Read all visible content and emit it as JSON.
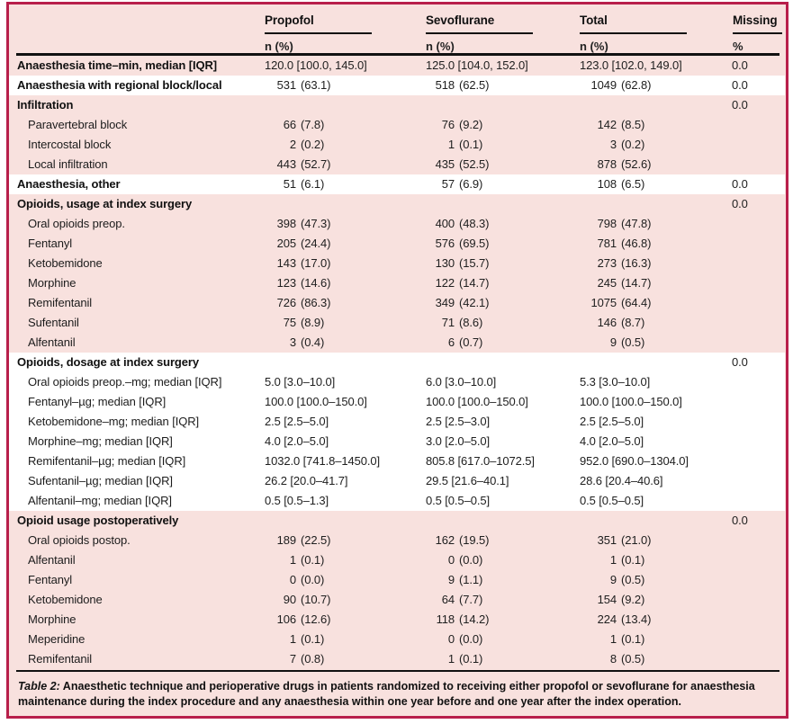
{
  "colors": {
    "accent_border": "#b81f4b",
    "row_pink": "#f8e1de",
    "row_white": "#ffffff",
    "rule_black": "#111111"
  },
  "table": {
    "columns": [
      {
        "key": "propofol",
        "label": "Propofol",
        "sub": "n (%)"
      },
      {
        "key": "sevoflurane",
        "label": "Sevoflurane",
        "sub": "n (%)"
      },
      {
        "key": "total",
        "label": "Total",
        "sub": "n (%)"
      },
      {
        "key": "missing",
        "label": "Missing",
        "sub": "%"
      }
    ],
    "rows": [
      {
        "label": "Anaesthesia time–min, median [IQR]",
        "bold": true,
        "white": false,
        "indent": false,
        "propofol": "120.0 [100.0, 145.0]",
        "sevoflurane": "125.0 [104.0, 152.0]",
        "total": "123.0 [102.0, 149.0]",
        "missing": "0.0"
      },
      {
        "label": "Anaesthesia with regional block/local",
        "bold": true,
        "white": true,
        "indent": false,
        "propofol": [
          "531",
          "(63.1)"
        ],
        "sevoflurane": [
          "518",
          "(62.5)"
        ],
        "total": [
          "1049",
          "(62.8)"
        ],
        "missing": "0.0"
      },
      {
        "label": "Infiltration",
        "bold": true,
        "white": false,
        "indent": false,
        "propofol": null,
        "sevoflurane": null,
        "total": null,
        "missing": "0.0"
      },
      {
        "label": "Paravertebral block",
        "bold": false,
        "white": false,
        "indent": true,
        "propofol": [
          "66",
          "(7.8)"
        ],
        "sevoflurane": [
          "76",
          "(9.2)"
        ],
        "total": [
          "142",
          "(8.5)"
        ],
        "missing": ""
      },
      {
        "label": "Intercostal block",
        "bold": false,
        "white": false,
        "indent": true,
        "propofol": [
          "2",
          "(0.2)"
        ],
        "sevoflurane": [
          "1",
          "(0.1)"
        ],
        "total": [
          "3",
          "(0.2)"
        ],
        "missing": ""
      },
      {
        "label": "Local infiltration",
        "bold": false,
        "white": false,
        "indent": true,
        "propofol": [
          "443",
          "(52.7)"
        ],
        "sevoflurane": [
          "435",
          "(52.5)"
        ],
        "total": [
          "878",
          "(52.6)"
        ],
        "missing": ""
      },
      {
        "label": "Anaesthesia, other",
        "bold": true,
        "white": true,
        "indent": false,
        "propofol": [
          "51",
          "(6.1)"
        ],
        "sevoflurane": [
          "57",
          "(6.9)"
        ],
        "total": [
          "108",
          "(6.5)"
        ],
        "missing": "0.0"
      },
      {
        "label": "Opioids, usage at index surgery",
        "bold": true,
        "white": false,
        "indent": false,
        "propofol": null,
        "sevoflurane": null,
        "total": null,
        "missing": "0.0"
      },
      {
        "label": "Oral opioids preop.",
        "bold": false,
        "white": false,
        "indent": true,
        "propofol": [
          "398",
          "(47.3)"
        ],
        "sevoflurane": [
          "400",
          "(48.3)"
        ],
        "total": [
          "798",
          "(47.8)"
        ],
        "missing": ""
      },
      {
        "label": "Fentanyl",
        "bold": false,
        "white": false,
        "indent": true,
        "propofol": [
          "205",
          "(24.4)"
        ],
        "sevoflurane": [
          "576",
          "(69.5)"
        ],
        "total": [
          "781",
          "(46.8)"
        ],
        "missing": ""
      },
      {
        "label": "Ketobemidone",
        "bold": false,
        "white": false,
        "indent": true,
        "propofol": [
          "143",
          "(17.0)"
        ],
        "sevoflurane": [
          "130",
          "(15.7)"
        ],
        "total": [
          "273",
          "(16.3)"
        ],
        "missing": ""
      },
      {
        "label": "Morphine",
        "bold": false,
        "white": false,
        "indent": true,
        "propofol": [
          "123",
          "(14.6)"
        ],
        "sevoflurane": [
          "122",
          "(14.7)"
        ],
        "total": [
          "245",
          "(14.7)"
        ],
        "missing": ""
      },
      {
        "label": "Remifentanil",
        "bold": false,
        "white": false,
        "indent": true,
        "propofol": [
          "726",
          "(86.3)"
        ],
        "sevoflurane": [
          "349",
          "(42.1)"
        ],
        "total": [
          "1075",
          "(64.4)"
        ],
        "missing": ""
      },
      {
        "label": "Sufentanil",
        "bold": false,
        "white": false,
        "indent": true,
        "propofol": [
          "75",
          "(8.9)"
        ],
        "sevoflurane": [
          "71",
          "(8.6)"
        ],
        "total": [
          "146",
          "(8.7)"
        ],
        "missing": ""
      },
      {
        "label": "Alfentanil",
        "bold": false,
        "white": false,
        "indent": true,
        "propofol": [
          "3",
          "(0.4)"
        ],
        "sevoflurane": [
          "6",
          "(0.7)"
        ],
        "total": [
          "9",
          "(0.5)"
        ],
        "missing": ""
      },
      {
        "label": "Opioids, dosage at index surgery",
        "bold": true,
        "white": true,
        "indent": false,
        "propofol": null,
        "sevoflurane": null,
        "total": null,
        "missing": "0.0"
      },
      {
        "label": "Oral opioids preop.–mg; median [IQR]",
        "bold": false,
        "white": true,
        "indent": true,
        "propofol": "5.0 [3.0–10.0]",
        "sevoflurane": "6.0 [3.0–10.0]",
        "total": "5.3 [3.0–10.0]",
        "missing": ""
      },
      {
        "label": "Fentanyl–µg; median [IQR]",
        "bold": false,
        "white": true,
        "indent": true,
        "propofol": "100.0 [100.0–150.0]",
        "sevoflurane": "100.0 [100.0–150.0]",
        "total": "100.0 [100.0–150.0]",
        "missing": ""
      },
      {
        "label": "Ketobemidone–mg; median [IQR]",
        "bold": false,
        "white": true,
        "indent": true,
        "propofol": "2.5 [2.5–5.0]",
        "sevoflurane": "2.5 [2.5–3.0]",
        "total": "2.5 [2.5–5.0]",
        "missing": ""
      },
      {
        "label": "Morphine–mg; median [IQR]",
        "bold": false,
        "white": true,
        "indent": true,
        "propofol": "4.0 [2.0–5.0]",
        "sevoflurane": "3.0 [2.0–5.0]",
        "total": "4.0 [2.0–5.0]",
        "missing": ""
      },
      {
        "label": "Remifentanil–µg; median [IQR]",
        "bold": false,
        "white": true,
        "indent": true,
        "propofol": "1032.0 [741.8–1450.0]",
        "sevoflurane": "805.8 [617.0–1072.5]",
        "total": "952.0 [690.0–1304.0]",
        "missing": ""
      },
      {
        "label": "Sufentanil–µg; median [IQR]",
        "bold": false,
        "white": true,
        "indent": true,
        "propofol": "26.2 [20.0–41.7]",
        "sevoflurane": "29.5 [21.6–40.1]",
        "total": "28.6 [20.4–40.6]",
        "missing": ""
      },
      {
        "label": "Alfentanil–mg; median [IQR]",
        "bold": false,
        "white": true,
        "indent": true,
        "propofol": "0.5 [0.5–1.3]",
        "sevoflurane": "0.5 [0.5–0.5]",
        "total": "0.5 [0.5–0.5]",
        "missing": ""
      },
      {
        "label": "Opioid usage postoperatively",
        "bold": true,
        "white": false,
        "indent": false,
        "propofol": null,
        "sevoflurane": null,
        "total": null,
        "missing": "0.0"
      },
      {
        "label": "Oral opioids postop.",
        "bold": false,
        "white": false,
        "indent": true,
        "propofol": [
          "189",
          "(22.5)"
        ],
        "sevoflurane": [
          "162",
          "(19.5)"
        ],
        "total": [
          "351",
          "(21.0)"
        ],
        "missing": ""
      },
      {
        "label": "Alfentanil",
        "bold": false,
        "white": false,
        "indent": true,
        "propofol": [
          "1",
          "(0.1)"
        ],
        "sevoflurane": [
          "0",
          "(0.0)"
        ],
        "total": [
          "1",
          "(0.1)"
        ],
        "missing": ""
      },
      {
        "label": "Fentanyl",
        "bold": false,
        "white": false,
        "indent": true,
        "propofol": [
          "0",
          "(0.0)"
        ],
        "sevoflurane": [
          "9",
          "(1.1)"
        ],
        "total": [
          "9",
          "(0.5)"
        ],
        "missing": ""
      },
      {
        "label": "Ketobemidone",
        "bold": false,
        "white": false,
        "indent": true,
        "propofol": [
          "90",
          "(10.7)"
        ],
        "sevoflurane": [
          "64",
          "(7.7)"
        ],
        "total": [
          "154",
          "(9.2)"
        ],
        "missing": ""
      },
      {
        "label": "Morphine",
        "bold": false,
        "white": false,
        "indent": true,
        "propofol": [
          "106",
          "(12.6)"
        ],
        "sevoflurane": [
          "118",
          "(14.2)"
        ],
        "total": [
          "224",
          "(13.4)"
        ],
        "missing": ""
      },
      {
        "label": "Meperidine",
        "bold": false,
        "white": false,
        "indent": true,
        "propofol": [
          "1",
          "(0.1)"
        ],
        "sevoflurane": [
          "0",
          "(0.0)"
        ],
        "total": [
          "1",
          "(0.1)"
        ],
        "missing": ""
      },
      {
        "label": "Remifentanil",
        "bold": false,
        "white": false,
        "indent": true,
        "propofol": [
          "7",
          "(0.8)"
        ],
        "sevoflurane": [
          "1",
          "(0.1)"
        ],
        "total": [
          "8",
          "(0.5)"
        ],
        "missing": ""
      }
    ],
    "caption_label": "Table 2:",
    "caption_text": "Anaesthetic technique and perioperative drugs in patients randomized to receiving either propofol or sevoflurane for anaesthesia maintenance during the index procedure and any anaesthesia within one year before and one year after the index operation."
  }
}
